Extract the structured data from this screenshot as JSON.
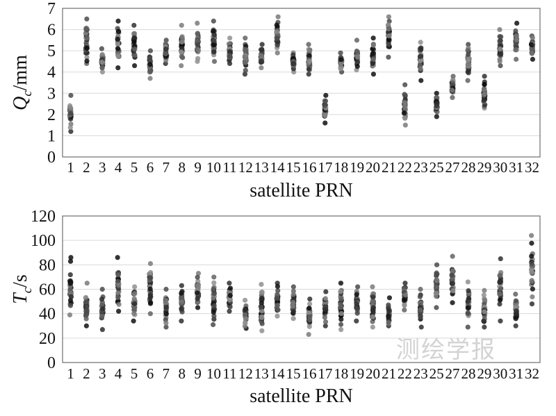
{
  "watermark": "测绘学报",
  "chart_data": [
    {
      "type": "scatter",
      "ylabel_symbol": "Q",
      "ylabel_sub": "c",
      "ylabel_unit": "/mm",
      "xlabel": "satellite PRN",
      "ylim": [
        0,
        7
      ],
      "yticks": [
        0,
        1,
        2,
        3,
        4,
        5,
        6,
        7
      ],
      "grid": true,
      "categories": [
        "1",
        "2",
        "3",
        "4",
        "5",
        "6",
        "7",
        "8",
        "9",
        "10",
        "11",
        "12",
        "13",
        "14",
        "15",
        "16",
        "17",
        "18",
        "19",
        "20",
        "21",
        "22",
        "23",
        "25",
        "27",
        "28",
        "29",
        "30",
        "31",
        "32"
      ],
      "ranges": [
        [
          1.2,
          2.9
        ],
        [
          4.4,
          6.5
        ],
        [
          4.0,
          5.1
        ],
        [
          4.2,
          6.4
        ],
        [
          4.3,
          6.2
        ],
        [
          3.7,
          5.0
        ],
        [
          4.4,
          5.5
        ],
        [
          4.3,
          6.2
        ],
        [
          4.5,
          6.3
        ],
        [
          4.5,
          6.4
        ],
        [
          4.4,
          5.6
        ],
        [
          3.9,
          5.6
        ],
        [
          4.2,
          5.3
        ],
        [
          4.9,
          6.6
        ],
        [
          4.0,
          4.9
        ],
        [
          3.9,
          5.3
        ],
        [
          1.6,
          2.9
        ],
        [
          4.0,
          4.9
        ],
        [
          4.1,
          5.5
        ],
        [
          3.9,
          5.6
        ],
        [
          4.7,
          6.6
        ],
        [
          1.5,
          3.4
        ],
        [
          3.6,
          5.4
        ],
        [
          1.9,
          3.0
        ],
        [
          2.8,
          3.8
        ],
        [
          3.6,
          5.3
        ],
        [
          2.3,
          3.8
        ],
        [
          4.3,
          6.0
        ],
        [
          4.6,
          6.3
        ],
        [
          4.6,
          5.7
        ]
      ]
    },
    {
      "type": "scatter",
      "ylabel_symbol": "T",
      "ylabel_sub": "c",
      "ylabel_unit": "/s",
      "xlabel": "satellite PRN",
      "ylim": [
        0,
        120
      ],
      "yticks": [
        0,
        20,
        40,
        60,
        80,
        100,
        120
      ],
      "grid": true,
      "categories": [
        "1",
        "2",
        "3",
        "4",
        "5",
        "6",
        "7",
        "8",
        "9",
        "10",
        "11",
        "12",
        "13",
        "14",
        "15",
        "16",
        "17",
        "18",
        "19",
        "20",
        "21",
        "22",
        "23",
        "25",
        "27",
        "28",
        "29",
        "30",
        "31",
        "32"
      ],
      "ranges": [
        [
          39,
          86
        ],
        [
          30,
          65
        ],
        [
          27,
          60
        ],
        [
          42,
          86
        ],
        [
          34,
          62
        ],
        [
          40,
          81
        ],
        [
          29,
          60
        ],
        [
          34,
          63
        ],
        [
          45,
          73
        ],
        [
          31,
          70
        ],
        [
          42,
          65
        ],
        [
          28,
          51
        ],
        [
          26,
          64
        ],
        [
          38,
          65
        ],
        [
          36,
          62
        ],
        [
          23,
          52
        ],
        [
          30,
          58
        ],
        [
          27,
          65
        ],
        [
          34,
          62
        ],
        [
          29,
          62
        ],
        [
          30,
          53
        ],
        [
          43,
          65
        ],
        [
          29,
          60
        ],
        [
          45,
          80
        ],
        [
          49,
          87
        ],
        [
          29,
          66
        ],
        [
          29,
          59
        ],
        [
          34,
          85
        ],
        [
          30,
          56
        ],
        [
          48,
          104
        ]
      ]
    }
  ]
}
